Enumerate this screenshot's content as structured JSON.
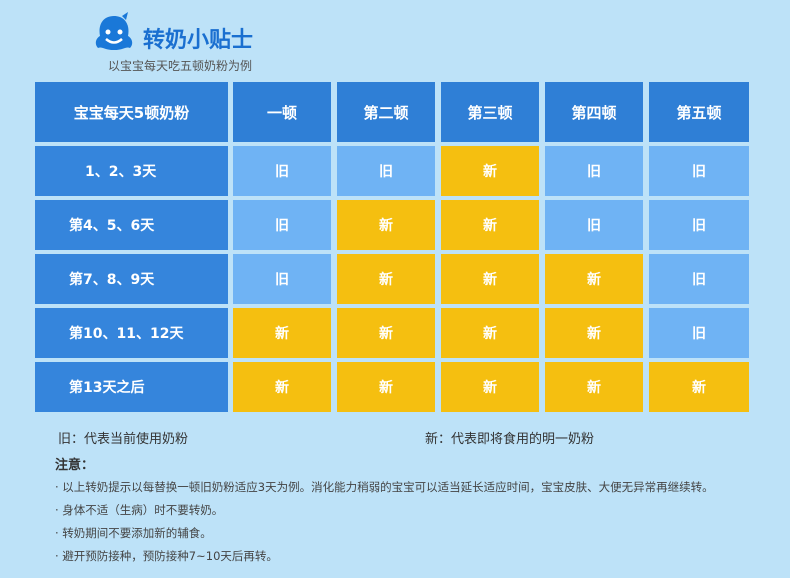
{
  "header": {
    "title": "转奶小贴士",
    "subtitle": "以宝宝每天吃五顿奶粉为例"
  },
  "table": {
    "header": [
      "宝宝每天5顿奶粉",
      "一顿",
      "第二顿",
      "第三顿",
      "第四顿",
      "第五顿"
    ],
    "rows": [
      [
        "1、2、3天",
        "旧",
        "旧",
        "新",
        "旧",
        "旧"
      ],
      [
        "第4、5、6天",
        "旧",
        "新",
        "新",
        "旧",
        "旧"
      ],
      [
        "第7、8、9天",
        "旧",
        "新",
        "新",
        "新",
        "旧"
      ],
      [
        "第10、11、12天",
        "新",
        "新",
        "新",
        "新",
        "旧"
      ],
      [
        "第13天之后",
        "新",
        "新",
        "新",
        "新",
        "新"
      ]
    ]
  },
  "legend": [
    "旧：代表当前使用奶粉",
    "新：代表即将食用的明一奶粉"
  ],
  "notes": {
    "title": "注意：",
    "items": [
      "· 以上转奶提示以每替换一顿旧奶粉适应3天为例。消化能力稍弱的宝宝可以适当延长适应时间，宝宝皮肤、大便无异常再继续转。",
      "· 身体不适（生病）时不要转奶。",
      "· 转奶期间不要添加新的辅食。",
      "· 避开预防接种，预防接种7~10天后再转。"
    ]
  }
}
